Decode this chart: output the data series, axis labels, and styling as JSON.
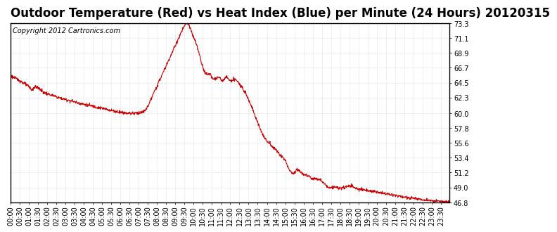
{
  "title": "Outdoor Temperature (Red) vs Heat Index (Blue) per Minute (24 Hours) 20120315",
  "copyright": "Copyright 2012 Cartronics.com",
  "line_color": "#cc0000",
  "background_color": "#ffffff",
  "grid_color": "#bbbbbb",
  "yticks": [
    46.8,
    49.0,
    51.2,
    53.4,
    55.6,
    57.8,
    60.0,
    62.3,
    64.5,
    66.7,
    68.9,
    71.1,
    73.3
  ],
  "ylim": [
    46.8,
    73.3
  ],
  "title_fontsize": 12,
  "copyright_fontsize": 7,
  "tick_fontsize": 7,
  "control_points": [
    [
      0,
      65.5
    ],
    [
      30,
      64.8
    ],
    [
      50,
      64.2
    ],
    [
      60,
      63.9
    ],
    [
      70,
      63.4
    ],
    [
      80,
      63.6
    ],
    [
      90,
      63.3
    ],
    [
      110,
      63.0
    ],
    [
      130,
      62.7
    ],
    [
      150,
      62.4
    ],
    [
      170,
      62.1
    ],
    [
      200,
      61.8
    ],
    [
      230,
      61.4
    ],
    [
      260,
      61.1
    ],
    [
      290,
      60.8
    ],
    [
      320,
      60.5
    ],
    [
      350,
      60.2
    ],
    [
      380,
      60.0
    ],
    [
      410,
      60.0
    ],
    [
      430,
      60.1
    ],
    [
      440,
      60.3
    ],
    [
      450,
      61.0
    ],
    [
      460,
      62.0
    ],
    [
      475,
      63.5
    ],
    [
      490,
      65.0
    ],
    [
      510,
      67.0
    ],
    [
      530,
      69.0
    ],
    [
      550,
      71.0
    ],
    [
      565,
      72.5
    ],
    [
      575,
      73.2
    ],
    [
      580,
      73.3
    ],
    [
      585,
      73.0
    ],
    [
      590,
      72.3
    ],
    [
      600,
      71.2
    ],
    [
      610,
      70.0
    ],
    [
      620,
      68.5
    ],
    [
      625,
      67.5
    ],
    [
      630,
      66.8
    ],
    [
      635,
      66.2
    ],
    [
      640,
      65.8
    ],
    [
      645,
      65.5
    ],
    [
      650,
      65.5
    ],
    [
      655,
      65.8
    ],
    [
      660,
      65.5
    ],
    [
      665,
      65.2
    ],
    [
      670,
      65.0
    ],
    [
      675,
      64.9
    ],
    [
      680,
      65.0
    ],
    [
      685,
      65.3
    ],
    [
      690,
      65.2
    ],
    [
      695,
      65.0
    ],
    [
      700,
      64.9
    ],
    [
      705,
      65.0
    ],
    [
      710,
      65.1
    ],
    [
      720,
      65.0
    ],
    [
      730,
      64.8
    ],
    [
      740,
      64.7
    ],
    [
      750,
      64.5
    ],
    [
      760,
      63.8
    ],
    [
      770,
      63.0
    ],
    [
      780,
      62.0
    ],
    [
      790,
      61.0
    ],
    [
      800,
      59.8
    ],
    [
      810,
      58.5
    ],
    [
      820,
      57.5
    ],
    [
      830,
      56.5
    ],
    [
      840,
      55.8
    ],
    [
      850,
      55.5
    ],
    [
      855,
      55.2
    ],
    [
      860,
      55.0
    ],
    [
      870,
      54.5
    ],
    [
      880,
      54.0
    ],
    [
      890,
      53.5
    ],
    [
      900,
      53.0
    ],
    [
      905,
      52.5
    ],
    [
      910,
      52.0
    ],
    [
      915,
      51.5
    ],
    [
      920,
      51.2
    ],
    [
      925,
      51.0
    ],
    [
      930,
      51.2
    ],
    [
      935,
      51.5
    ],
    [
      940,
      51.8
    ],
    [
      945,
      51.5
    ],
    [
      950,
      51.3
    ],
    [
      960,
      51.0
    ],
    [
      975,
      50.7
    ],
    [
      990,
      50.3
    ],
    [
      1005,
      50.0
    ],
    [
      1020,
      49.8
    ],
    [
      1035,
      49.5
    ],
    [
      1050,
      49.2
    ],
    [
      1065,
      49.0
    ],
    [
      1080,
      48.9
    ],
    [
      1095,
      49.0
    ],
    [
      1110,
      49.2
    ],
    [
      1115,
      49.3
    ],
    [
      1120,
      49.2
    ],
    [
      1125,
      49.0
    ],
    [
      1135,
      48.8
    ],
    [
      1150,
      48.7
    ],
    [
      1165,
      48.6
    ],
    [
      1180,
      48.5
    ],
    [
      1200,
      48.3
    ],
    [
      1230,
      48.1
    ],
    [
      1260,
      47.8
    ],
    [
      1300,
      47.5
    ],
    [
      1350,
      47.2
    ],
    [
      1390,
      47.0
    ],
    [
      1420,
      46.9
    ],
    [
      1439,
      46.8
    ]
  ]
}
